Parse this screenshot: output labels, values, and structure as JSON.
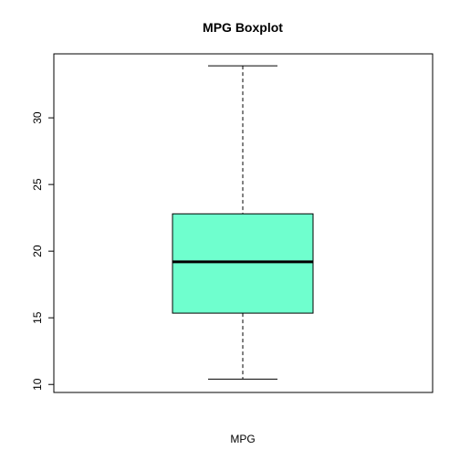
{
  "chart_data": {
    "type": "boxplot",
    "title": "MPG Boxplot",
    "xlabel": "MPG",
    "ylabel": "",
    "ylim": [
      9.4,
      34.8
    ],
    "yticks": [
      10,
      15,
      20,
      25,
      30
    ],
    "grid": false,
    "series": [
      {
        "stats": {
          "min": 10.4,
          "q1": 15.35,
          "median": 19.2,
          "q3": 22.8,
          "max": 33.9
        },
        "fill": "#6FFFCE"
      }
    ],
    "colors": {
      "box_fill": "#6FFFCE",
      "stroke": "#000000"
    }
  }
}
